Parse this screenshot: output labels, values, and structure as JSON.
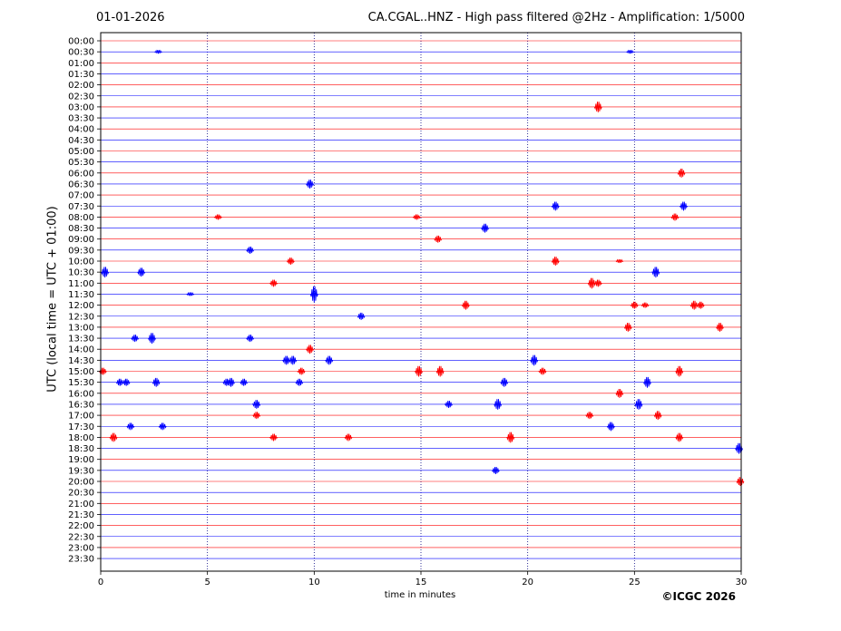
{
  "header": {
    "date": "01-01-2026",
    "title": "CA.CGAL..HNZ - High pass filtered @2Hz - Amplification: 1/5000"
  },
  "footer": {
    "credit": "©ICGC 2026"
  },
  "chart_data": {
    "type": "line",
    "title": "CA.CGAL..HNZ - High pass filtered @2Hz - Amplification: 1/5000",
    "xlabel": "time in minutes",
    "ylabel": "UTC (local time = UTC + 01:00)",
    "xlim": [
      0,
      30
    ],
    "xticks": [
      0,
      5,
      10,
      15,
      20,
      25,
      30
    ],
    "grid": "vertical dotted lines at 5, 10, 15, 20, 25",
    "colors": {
      "even_row": "#ff0000",
      "odd_row": "#0000ff",
      "grid": "#000080"
    },
    "rows": [
      "00:00",
      "00:30",
      "01:00",
      "01:30",
      "02:00",
      "02:30",
      "03:00",
      "03:30",
      "04:00",
      "04:30",
      "05:00",
      "05:30",
      "06:00",
      "06:30",
      "07:00",
      "07:30",
      "08:00",
      "08:30",
      "09:00",
      "09:30",
      "10:00",
      "10:30",
      "11:00",
      "11:30",
      "12:00",
      "12:30",
      "13:00",
      "13:30",
      "14:00",
      "14:30",
      "15:00",
      "15:30",
      "16:00",
      "16:30",
      "17:00",
      "17:30",
      "18:00",
      "18:30",
      "19:00",
      "19:30",
      "20:00",
      "20:30",
      "21:00",
      "21:30",
      "22:00",
      "22:30",
      "23:00",
      "23:30"
    ],
    "events": [
      {
        "row": "00:30",
        "minute": 2.7,
        "amp": 2
      },
      {
        "row": "00:30",
        "minute": 24.8,
        "amp": 2
      },
      {
        "row": "03:00",
        "minute": 23.3,
        "amp": 6
      },
      {
        "row": "06:00",
        "minute": 27.2,
        "amp": 5
      },
      {
        "row": "06:30",
        "minute": 9.8,
        "amp": 5
      },
      {
        "row": "07:30",
        "minute": 21.3,
        "amp": 5
      },
      {
        "row": "07:30",
        "minute": 27.3,
        "amp": 5
      },
      {
        "row": "08:00",
        "minute": 5.5,
        "amp": 3
      },
      {
        "row": "08:00",
        "minute": 14.8,
        "amp": 3
      },
      {
        "row": "08:00",
        "minute": 26.9,
        "amp": 4
      },
      {
        "row": "08:30",
        "minute": 18.0,
        "amp": 5
      },
      {
        "row": "09:00",
        "minute": 15.8,
        "amp": 4
      },
      {
        "row": "09:30",
        "minute": 7.0,
        "amp": 4
      },
      {
        "row": "10:00",
        "minute": 8.9,
        "amp": 4
      },
      {
        "row": "10:00",
        "minute": 21.3,
        "amp": 5
      },
      {
        "row": "10:00",
        "minute": 24.3,
        "amp": 2
      },
      {
        "row": "10:30",
        "minute": 0.2,
        "amp": 6
      },
      {
        "row": "10:30",
        "minute": 1.9,
        "amp": 5
      },
      {
        "row": "10:30",
        "minute": 26.0,
        "amp": 6
      },
      {
        "row": "11:00",
        "minute": 8.1,
        "amp": 4
      },
      {
        "row": "11:00",
        "minute": 23.0,
        "amp": 6
      },
      {
        "row": "11:00",
        "minute": 23.3,
        "amp": 4
      },
      {
        "row": "11:30",
        "minute": 10.0,
        "amp": 9
      },
      {
        "row": "11:30",
        "minute": 4.2,
        "amp": 2
      },
      {
        "row": "12:00",
        "minute": 17.1,
        "amp": 5
      },
      {
        "row": "12:00",
        "minute": 25.0,
        "amp": 4
      },
      {
        "row": "12:00",
        "minute": 25.5,
        "amp": 3
      },
      {
        "row": "12:00",
        "minute": 27.8,
        "amp": 5
      },
      {
        "row": "12:00",
        "minute": 28.1,
        "amp": 4
      },
      {
        "row": "12:30",
        "minute": 12.2,
        "amp": 4
      },
      {
        "row": "13:00",
        "minute": 24.7,
        "amp": 5
      },
      {
        "row": "13:00",
        "minute": 29.0,
        "amp": 5
      },
      {
        "row": "13:30",
        "minute": 1.6,
        "amp": 4
      },
      {
        "row": "13:30",
        "minute": 2.4,
        "amp": 6
      },
      {
        "row": "13:30",
        "minute": 7.0,
        "amp": 4
      },
      {
        "row": "14:00",
        "minute": 9.8,
        "amp": 5
      },
      {
        "row": "14:30",
        "minute": 8.7,
        "amp": 5
      },
      {
        "row": "14:30",
        "minute": 9.0,
        "amp": 5
      },
      {
        "row": "14:30",
        "minute": 10.7,
        "amp": 5
      },
      {
        "row": "14:30",
        "minute": 20.3,
        "amp": 6
      },
      {
        "row": "15:00",
        "minute": 0.1,
        "amp": 4
      },
      {
        "row": "15:00",
        "minute": 9.4,
        "amp": 4
      },
      {
        "row": "15:00",
        "minute": 14.9,
        "amp": 6
      },
      {
        "row": "15:00",
        "minute": 15.9,
        "amp": 6
      },
      {
        "row": "15:00",
        "minute": 20.7,
        "amp": 4
      },
      {
        "row": "15:00",
        "minute": 27.1,
        "amp": 6
      },
      {
        "row": "15:30",
        "minute": 0.9,
        "amp": 4
      },
      {
        "row": "15:30",
        "minute": 1.2,
        "amp": 4
      },
      {
        "row": "15:30",
        "minute": 2.6,
        "amp": 5
      },
      {
        "row": "15:30",
        "minute": 5.9,
        "amp": 4
      },
      {
        "row": "15:30",
        "minute": 6.1,
        "amp": 5
      },
      {
        "row": "15:30",
        "minute": 6.7,
        "amp": 4
      },
      {
        "row": "15:30",
        "minute": 9.3,
        "amp": 4
      },
      {
        "row": "15:30",
        "minute": 18.9,
        "amp": 5
      },
      {
        "row": "15:30",
        "minute": 25.6,
        "amp": 6
      },
      {
        "row": "16:00",
        "minute": 24.3,
        "amp": 5
      },
      {
        "row": "16:30",
        "minute": 7.3,
        "amp": 5
      },
      {
        "row": "16:30",
        "minute": 16.3,
        "amp": 4
      },
      {
        "row": "16:30",
        "minute": 18.6,
        "amp": 6
      },
      {
        "row": "16:30",
        "minute": 25.2,
        "amp": 6
      },
      {
        "row": "17:00",
        "minute": 7.3,
        "amp": 4
      },
      {
        "row": "17:00",
        "minute": 22.9,
        "amp": 4
      },
      {
        "row": "17:00",
        "minute": 26.1,
        "amp": 5
      },
      {
        "row": "17:30",
        "minute": 1.4,
        "amp": 4
      },
      {
        "row": "17:30",
        "minute": 2.9,
        "amp": 4
      },
      {
        "row": "17:30",
        "minute": 23.9,
        "amp": 5
      },
      {
        "row": "18:00",
        "minute": 0.6,
        "amp": 5
      },
      {
        "row": "18:00",
        "minute": 8.1,
        "amp": 4
      },
      {
        "row": "18:00",
        "minute": 11.6,
        "amp": 4
      },
      {
        "row": "18:00",
        "minute": 19.2,
        "amp": 6
      },
      {
        "row": "18:00",
        "minute": 27.1,
        "amp": 5
      },
      {
        "row": "18:30",
        "minute": 29.9,
        "amp": 6
      },
      {
        "row": "19:30",
        "minute": 18.5,
        "amp": 4
      },
      {
        "row": "20:00",
        "minute": 30.0,
        "amp": 5
      }
    ]
  }
}
